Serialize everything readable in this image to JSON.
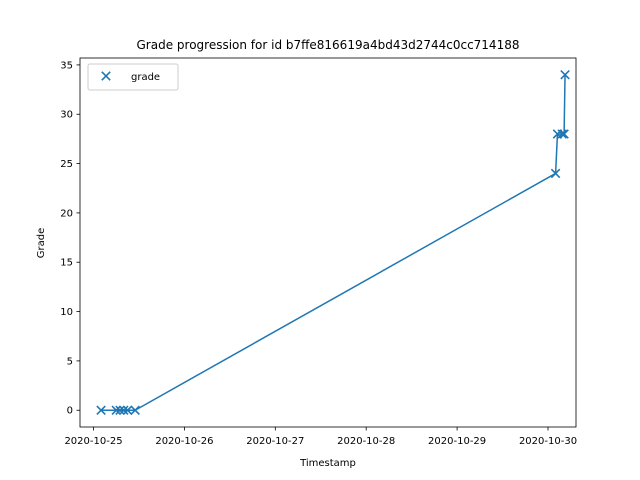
{
  "chart_data": {
    "type": "line",
    "title": "Grade progression for id b7ffe816619a4bd43d2744c0cc714188",
    "xlabel": "Timestamp",
    "ylabel": "Grade",
    "xlim": [
      "2020-10-25T00:00:00",
      "2020-10-30T00:00:00"
    ],
    "ylim": [
      -1.7,
      35.7
    ],
    "x_ticks": [
      "2020-10-25",
      "2020-10-26",
      "2020-10-27",
      "2020-10-28",
      "2020-10-29",
      "2020-10-30"
    ],
    "y_ticks": [
      0,
      5,
      10,
      15,
      20,
      25,
      30,
      35
    ],
    "grid": false,
    "legend": {
      "position": "upper-left",
      "entries": [
        "grade"
      ]
    },
    "marker": "x",
    "color": "#1f77b4",
    "series": [
      {
        "name": "grade",
        "x": [
          "2020-10-25T02:00:00",
          "2020-10-25T06:00:00",
          "2020-10-25T07:00:00",
          "2020-10-25T08:00:00",
          "2020-10-25T09:00:00",
          "2020-10-25T11:00:00",
          "2020-10-30T02:00:00",
          "2020-10-30T02:30:00",
          "2020-10-30T03:45:00",
          "2020-10-30T04:15:00",
          "2020-10-30T04:30:00"
        ],
        "y": [
          0,
          0,
          0,
          0,
          0,
          0,
          24,
          28,
          28,
          28,
          34
        ]
      }
    ]
  }
}
